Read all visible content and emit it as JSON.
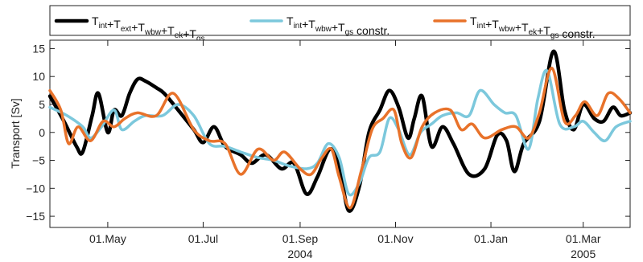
{
  "chart_data": {
    "type": "line",
    "ylabel": "Transport [Sv]",
    "ylim": [
      -17,
      16.5
    ],
    "xlim": [
      "2004-03-25",
      "2005-03-31"
    ],
    "y_ticks": [
      15,
      10,
      5,
      0,
      -5,
      -10,
      -15
    ],
    "x_ticks": [
      {
        "date": "2004-05-01",
        "label": "01.May"
      },
      {
        "date": "2004-07-01",
        "label": "01.Jul"
      },
      {
        "date": "2004-09-01",
        "label": "01.Sep"
      },
      {
        "date": "2004-11-01",
        "label": "01.Nov"
      },
      {
        "date": "2005-01-01",
        "label": "01.Jan"
      },
      {
        "date": "2005-03-01",
        "label": "01.Mar"
      }
    ],
    "year_labels": [
      {
        "date": "2004-09-01",
        "label": "2004"
      },
      {
        "date": "2005-03-01",
        "label": "2005"
      }
    ],
    "grid": false,
    "legend_position": "top",
    "series": [
      {
        "name": "Tint+Text+Twbw+Tek+Tgs",
        "label_parts": [
          [
            "T",
            "int"
          ],
          [
            "+T",
            "ext"
          ],
          [
            "+T",
            "wbw"
          ],
          [
            "+T",
            "ek"
          ],
          [
            "+T",
            "gs"
          ]
        ],
        "label_suffix": "",
        "color": "#000000",
        "width": 4.5,
        "points": [
          [
            "2004-03-25",
            6.5
          ],
          [
            "2004-04-03",
            2.0
          ],
          [
            "2004-04-11",
            -2.5
          ],
          [
            "2004-04-15",
            -3.5
          ],
          [
            "2004-04-21",
            3.0
          ],
          [
            "2004-04-25",
            7.0
          ],
          [
            "2004-05-01",
            0.0
          ],
          [
            "2004-05-05",
            4.0
          ],
          [
            "2004-05-10",
            3.0
          ],
          [
            "2004-05-15",
            7.0
          ],
          [
            "2004-05-20",
            9.5
          ],
          [
            "2004-05-25",
            9.2
          ],
          [
            "2004-06-01",
            8.0
          ],
          [
            "2004-06-06",
            7.0
          ],
          [
            "2004-06-15",
            4.0
          ],
          [
            "2004-06-25",
            0.5
          ],
          [
            "2004-07-01",
            -1.8
          ],
          [
            "2004-07-08",
            1.0
          ],
          [
            "2004-07-15",
            -2.5
          ],
          [
            "2004-07-25",
            -4.0
          ],
          [
            "2004-08-01",
            -5.5
          ],
          [
            "2004-08-10",
            -4.0
          ],
          [
            "2004-08-20",
            -6.5
          ],
          [
            "2004-08-28",
            -5.5
          ],
          [
            "2004-09-05",
            -11.0
          ],
          [
            "2004-09-12",
            -8.0
          ],
          [
            "2004-09-20",
            -3.0
          ],
          [
            "2004-09-26",
            -6.0
          ],
          [
            "2004-10-02",
            -14.0
          ],
          [
            "2004-10-09",
            -9.5
          ],
          [
            "2004-10-15",
            0.0
          ],
          [
            "2004-10-22",
            4.0
          ],
          [
            "2004-10-28",
            7.5
          ],
          [
            "2004-11-03",
            4.5
          ],
          [
            "2004-11-09",
            -1.0
          ],
          [
            "2004-11-13",
            2.5
          ],
          [
            "2004-11-18",
            6.5
          ],
          [
            "2004-11-24",
            -2.5
          ],
          [
            "2004-12-01",
            1.0
          ],
          [
            "2004-12-08",
            -2.0
          ],
          [
            "2004-12-18",
            -7.5
          ],
          [
            "2004-12-28",
            -6.5
          ],
          [
            "2005-01-05",
            -0.5
          ],
          [
            "2005-01-11",
            -1.5
          ],
          [
            "2005-01-16",
            -7.0
          ],
          [
            "2005-01-22",
            -2.0
          ],
          [
            "2005-02-01",
            2.0
          ],
          [
            "2005-02-10",
            14.5
          ],
          [
            "2005-02-17",
            4.0
          ],
          [
            "2005-02-23",
            0.5
          ],
          [
            "2005-03-01",
            5.0
          ],
          [
            "2005-03-08",
            2.5
          ],
          [
            "2005-03-14",
            2.0
          ],
          [
            "2005-03-20",
            4.5
          ],
          [
            "2005-03-25",
            3.0
          ],
          [
            "2005-03-31",
            3.5
          ]
        ]
      },
      {
        "name": "Tint+Twbw+Tgs constr.",
        "label_parts": [
          [
            "T",
            "int"
          ],
          [
            "+T",
            "wbw"
          ],
          [
            "+T",
            "gs"
          ]
        ],
        "label_suffix": " constr.",
        "color": "#7cc8dc",
        "width": 3.5,
        "points": [
          [
            "2004-03-25",
            4.5
          ],
          [
            "2004-04-05",
            3.0
          ],
          [
            "2004-04-15",
            1.0
          ],
          [
            "2004-04-20",
            -1.0
          ],
          [
            "2004-04-27",
            1.0
          ],
          [
            "2004-05-05",
            4.0
          ],
          [
            "2004-05-10",
            0.5
          ],
          [
            "2004-05-18",
            2.0
          ],
          [
            "2004-05-25",
            3.0
          ],
          [
            "2004-06-05",
            3.0
          ],
          [
            "2004-06-15",
            5.0
          ],
          [
            "2004-06-25",
            3.0
          ],
          [
            "2004-07-05",
            -2.0
          ],
          [
            "2004-07-15",
            -2.5
          ],
          [
            "2004-07-25",
            -3.5
          ],
          [
            "2004-08-05",
            -4.5
          ],
          [
            "2004-08-15",
            -5.0
          ],
          [
            "2004-08-25",
            -6.0
          ],
          [
            "2004-09-05",
            -6.5
          ],
          [
            "2004-09-12",
            -5.5
          ],
          [
            "2004-09-19",
            -2.0
          ],
          [
            "2004-09-26",
            -4.5
          ],
          [
            "2004-10-02",
            -11.0
          ],
          [
            "2004-10-09",
            -9.0
          ],
          [
            "2004-10-15",
            -4.5
          ],
          [
            "2004-10-22",
            -3.5
          ],
          [
            "2004-10-28",
            2.5
          ],
          [
            "2004-11-03",
            0.5
          ],
          [
            "2004-11-10",
            -4.0
          ],
          [
            "2004-11-17",
            0.0
          ],
          [
            "2004-11-24",
            1.5
          ],
          [
            "2004-12-01",
            3.0
          ],
          [
            "2004-12-10",
            3.5
          ],
          [
            "2004-12-18",
            3.0
          ],
          [
            "2004-12-25",
            7.5
          ],
          [
            "2005-01-03",
            5.0
          ],
          [
            "2005-01-10",
            3.5
          ],
          [
            "2005-01-17",
            3.0
          ],
          [
            "2005-01-25",
            -3.0
          ],
          [
            "2005-01-31",
            6.0
          ],
          [
            "2005-02-06",
            11.0
          ],
          [
            "2005-02-14",
            1.5
          ],
          [
            "2005-02-23",
            1.0
          ],
          [
            "2005-03-01",
            2.0
          ],
          [
            "2005-03-08",
            0.0
          ],
          [
            "2005-03-15",
            -1.5
          ],
          [
            "2005-03-22",
            1.0
          ],
          [
            "2005-03-31",
            2.0
          ]
        ]
      },
      {
        "name": "Tint+Twbw+Tek+Tgs constr.",
        "label_parts": [
          [
            "T",
            "int"
          ],
          [
            "+T",
            "wbw"
          ],
          [
            "+T",
            "ek"
          ],
          [
            "+T",
            "gs"
          ]
        ],
        "label_suffix": " constr.",
        "color": "#e8722a",
        "width": 3.5,
        "points": [
          [
            "2004-03-25",
            7.5
          ],
          [
            "2004-04-01",
            4.0
          ],
          [
            "2004-04-06",
            -2.0
          ],
          [
            "2004-04-12",
            1.0
          ],
          [
            "2004-04-20",
            -1.5
          ],
          [
            "2004-04-28",
            2.0
          ],
          [
            "2004-05-05",
            1.0
          ],
          [
            "2004-05-12",
            2.5
          ],
          [
            "2004-05-20",
            3.5
          ],
          [
            "2004-06-01",
            3.0
          ],
          [
            "2004-06-12",
            7.0
          ],
          [
            "2004-06-25",
            0.5
          ],
          [
            "2004-07-05",
            -1.5
          ],
          [
            "2004-07-15",
            -2.0
          ],
          [
            "2004-07-25",
            -7.5
          ],
          [
            "2004-08-05",
            -3.0
          ],
          [
            "2004-08-15",
            -5.0
          ],
          [
            "2004-08-22",
            -3.5
          ],
          [
            "2004-09-01",
            -6.5
          ],
          [
            "2004-09-08",
            -7.5
          ],
          [
            "2004-09-15",
            -4.5
          ],
          [
            "2004-09-21",
            -3.0
          ],
          [
            "2004-09-26",
            -8.0
          ],
          [
            "2004-10-03",
            -13.5
          ],
          [
            "2004-10-10",
            -7.0
          ],
          [
            "2004-10-17",
            0.5
          ],
          [
            "2004-10-24",
            2.5
          ],
          [
            "2004-10-31",
            4.0
          ],
          [
            "2004-11-05",
            -2.0
          ],
          [
            "2004-11-11",
            -4.5
          ],
          [
            "2004-11-18",
            1.0
          ],
          [
            "2004-11-26",
            3.5
          ],
          [
            "2004-12-06",
            4.0
          ],
          [
            "2004-12-13",
            0.5
          ],
          [
            "2004-12-20",
            1.5
          ],
          [
            "2004-12-28",
            -1.0
          ],
          [
            "2005-01-08",
            0.5
          ],
          [
            "2005-01-17",
            1.0
          ],
          [
            "2005-01-25",
            -1.0
          ],
          [
            "2005-02-01",
            3.5
          ],
          [
            "2005-02-09",
            11.5
          ],
          [
            "2005-02-17",
            2.0
          ],
          [
            "2005-02-24",
            3.0
          ],
          [
            "2005-03-02",
            5.5
          ],
          [
            "2005-03-10",
            3.0
          ],
          [
            "2005-03-17",
            7.0
          ],
          [
            "2005-03-24",
            6.0
          ],
          [
            "2005-03-31",
            3.5
          ]
        ]
      }
    ]
  }
}
